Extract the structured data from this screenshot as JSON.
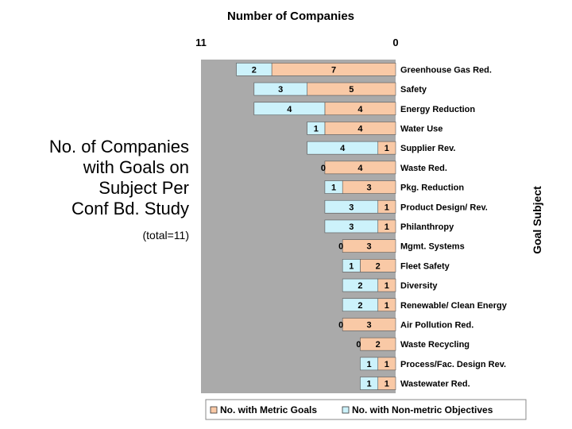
{
  "slide": {
    "title_lines": "No. of Companies\nwith Goals on\nSubject Per\nConf Bd. Study",
    "total_note": "(total=11)"
  },
  "chart_data": {
    "type": "bar",
    "orientation": "horizontal-reversed",
    "title": "Number of Companies",
    "xlabel": "Number of Companies",
    "ylabel": "Goal Subject",
    "xlim": [
      0,
      11
    ],
    "x_tick_labels": [
      "11",
      "0"
    ],
    "stacked": true,
    "categories": [
      "Greenhouse Gas Red.",
      "Safety",
      "Energy Reduction",
      "Water Use",
      "Supplier Rev.",
      "Waste Red.",
      "Pkg. Reduction",
      "Product Design/ Rev.",
      "Philanthropy",
      "Mgmt. Systems",
      "Fleet Safety",
      "Diversity",
      "Renewable/ Clean Energy",
      "Air Pollution Red.",
      "Waste Recycling",
      "Process/Fac. Design Rev.",
      "Wastewater Red."
    ],
    "series": [
      {
        "name": "No. with Metric Goals",
        "color": "#f9c9a6",
        "values": [
          7,
          5,
          4,
          4,
          1,
          4,
          3,
          1,
          1,
          3,
          2,
          1,
          1,
          3,
          2,
          1,
          1
        ]
      },
      {
        "name": "No. with Non-metric Objectives",
        "color": "#ccf2fb",
        "values": [
          2,
          3,
          4,
          1,
          4,
          0,
          1,
          3,
          3,
          0,
          1,
          2,
          2,
          0,
          0,
          1,
          1
        ]
      }
    ],
    "legend_position": "bottom",
    "plot_background": "#aaaaaa"
  }
}
